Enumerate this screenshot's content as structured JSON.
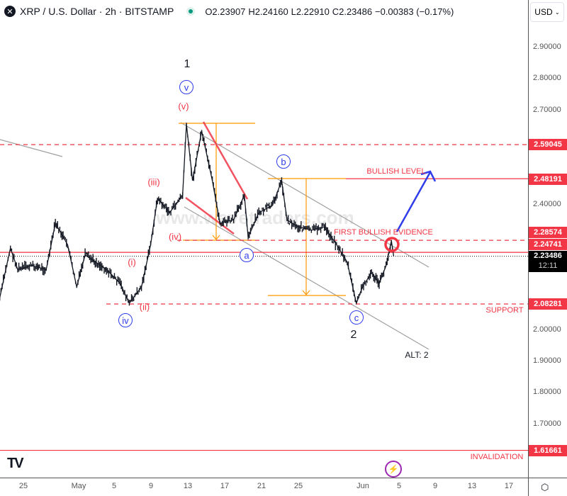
{
  "header": {
    "symbol_icon": "xrp-logo",
    "title": "XRP / U.S. Dollar · 2h · BITSTAMP",
    "open": "O2.23907",
    "high": "H2.24160",
    "low": "L2.22910",
    "close": "C2.23486",
    "change": "−0.00383 (−0.17%)",
    "status_color": "#089981",
    "currency": "USD"
  },
  "chart_data": {
    "type": "line",
    "title": "XRP / U.S. Dollar · 2h · BITSTAMP",
    "ylim": [
      1.58,
      3.0
    ],
    "y_ticks": [
      "2.90000",
      "2.80000",
      "2.70000",
      "2.40000",
      "2.00000",
      "1.90000",
      "1.80000",
      "1.70000"
    ],
    "x_ticks": [
      "25",
      "May",
      "5",
      "9",
      "13",
      "17",
      "21",
      "25",
      "Jun",
      "5",
      "9",
      "13",
      "17"
    ],
    "series": [
      {
        "values": [
          [
            "2025-04-22T10:00",
            2.103
          ],
          [
            "2025-04-23T14:00",
            2.261
          ],
          [
            "2025-04-24T09:00",
            2.193
          ],
          [
            "2025-04-25T22:00",
            2.205
          ],
          [
            "2025-04-27T12:00",
            2.193
          ],
          [
            "2025-04-28T12:00",
            2.34
          ],
          [
            "2025-04-29T20:00",
            2.272
          ],
          [
            "2025-04-30T20:00",
            2.137
          ],
          [
            "2025-05-01T18:00",
            2.239
          ],
          [
            "2025-05-04T02:00",
            2.193
          ],
          [
            "2025-05-05T14:00",
            2.148
          ],
          [
            "2025-05-06T14:00",
            2.085
          ],
          [
            "2025-05-07T22:00",
            2.137
          ],
          [
            "2025-05-08T22:00",
            2.272
          ],
          [
            "2025-05-09T16:00",
            2.419
          ],
          [
            "2025-05-11T00:00",
            2.374
          ],
          [
            "2025-05-12T10:00",
            2.43
          ],
          [
            "2025-05-12T20:00",
            2.656
          ],
          [
            "2025-05-13T12:00",
            2.476
          ],
          [
            "2025-05-14T12:00",
            2.634
          ],
          [
            "2025-05-15T16:00",
            2.476
          ],
          [
            "2025-05-16T12:00",
            2.34
          ],
          [
            "2025-05-18T00:00",
            2.351
          ],
          [
            "2025-05-19T04:00",
            2.43
          ],
          [
            "2025-05-19T14:00",
            2.295
          ],
          [
            "2025-05-20T18:00",
            2.374
          ],
          [
            "2025-05-22T06:00",
            2.397
          ],
          [
            "2025-05-23T06:00",
            2.476
          ],
          [
            "2025-05-23T20:00",
            2.351
          ],
          [
            "2025-05-25T00:00",
            2.329
          ],
          [
            "2025-05-26T12:00",
            2.318
          ],
          [
            "2025-05-27T22:00",
            2.329
          ],
          [
            "2025-05-29T06:00",
            2.272
          ],
          [
            "2025-05-30T10:00",
            2.216
          ],
          [
            "2025-05-31T10:00",
            2.085
          ],
          [
            "2025-06-01T02:00",
            2.137
          ],
          [
            "2025-06-02T02:00",
            2.182
          ],
          [
            "2025-06-02T22:00",
            2.148
          ],
          [
            "2025-06-03T16:00",
            2.205
          ],
          [
            "2025-06-04T06:00",
            2.284
          ],
          [
            "2025-06-04T12:00",
            2.235
          ]
        ]
      }
    ],
    "levels": [
      {
        "price": 2.59045,
        "label": "2.59045",
        "style": "dashed"
      },
      {
        "price": 2.48191,
        "label": "2.48191",
        "style": "solid",
        "note": "BULLISH LEVEL"
      },
      {
        "price": 2.28574,
        "label": "2.28574",
        "style": "dashed",
        "note": "FIRST BULLISH EVIDENCE"
      },
      {
        "price": 2.24741,
        "label": "2.24741",
        "style": "solid"
      },
      {
        "price": 2.08281,
        "label": "2.08281",
        "style": "dashed",
        "note": "SUPPORT"
      },
      {
        "price": 1.61661,
        "label": "1.61661",
        "style": "solid",
        "note": "INVALIDATION"
      }
    ],
    "last_price": {
      "price": 2.23486,
      "label": "2.23486",
      "countdown": "12:11"
    },
    "colors": {
      "level": "#f23645",
      "price": "#131722",
      "fib": "#ff9800",
      "channel": "#a0a0a0",
      "arrow": "#2f3dea"
    }
  },
  "annotations": {
    "w1": "1",
    "w2": "2",
    "alt": "ALT: 2",
    "i": "(i)",
    "ii": "(ii)",
    "iii": "(iii)",
    "iv": "(iv)",
    "v": "(v)",
    "civ": "iv",
    "cv": "v",
    "a": "a",
    "b": "b",
    "c": "c",
    "watermark": "www.wavetraders.com"
  }
}
